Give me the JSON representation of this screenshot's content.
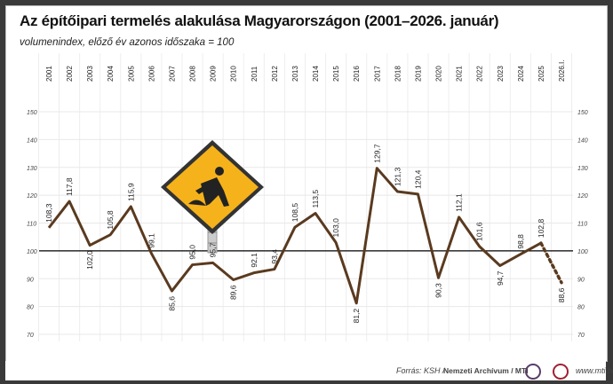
{
  "title": "Az építőipari termelés alakulása Magyarországon (2001–2026. január)",
  "subtitle": "volumenindex, előző év azonos időszaka = 100",
  "footer": {
    "source_prefix": "Forrás: KSH / ",
    "source_bold": "Nemzeti Archívum / MTI",
    "url": "www.mti.hu"
  },
  "colors": {
    "line": "#5a3a1f",
    "baseline": "#000000",
    "sign": "#f5b21b"
  },
  "icons": [
    "road-works-sign-icon",
    "nemzeti-archivum-logo",
    "mti-logo"
  ],
  "chart_data": {
    "type": "line",
    "title": "Az építőipari termelés alakulása Magyarországon (2001–2026. január)",
    "ylabel": "",
    "ylim": [
      70,
      150
    ],
    "yticks": [
      70,
      80,
      90,
      100,
      110,
      120,
      130,
      140,
      150
    ],
    "reference_line": 100,
    "categories": [
      "2001",
      "2002",
      "2003",
      "2004",
      "2005",
      "2006",
      "2007",
      "2008",
      "2009",
      "2010",
      "2011",
      "2012",
      "2013",
      "2014",
      "2015",
      "2016",
      "2017",
      "2018",
      "2019",
      "2020",
      "2021",
      "2022",
      "2023",
      "2024",
      "2025",
      "2026.I."
    ],
    "values": [
      108.3,
      117.8,
      102.0,
      105.8,
      115.9,
      99.1,
      85.6,
      95.0,
      95.7,
      89.6,
      92.1,
      93.4,
      108.5,
      113.5,
      103.0,
      81.2,
      129.7,
      121.3,
      120.4,
      90.3,
      112.1,
      101.6,
      94.7,
      98.8,
      102.8,
      88.6
    ],
    "labels": [
      "108,3",
      "117,8",
      "102,0",
      "105,8",
      "115,9",
      "99,1",
      "85,6",
      "95,0",
      "95,7",
      "89,6",
      "92,1",
      "93,4",
      "108,5",
      "113,5",
      "103,0",
      "81,2",
      "129,7",
      "121,3",
      "120,4",
      "90,3",
      "112,1",
      "101,6",
      "94,7",
      "98,8",
      "102,8",
      "88,6"
    ],
    "dashed_last_segment": true
  }
}
